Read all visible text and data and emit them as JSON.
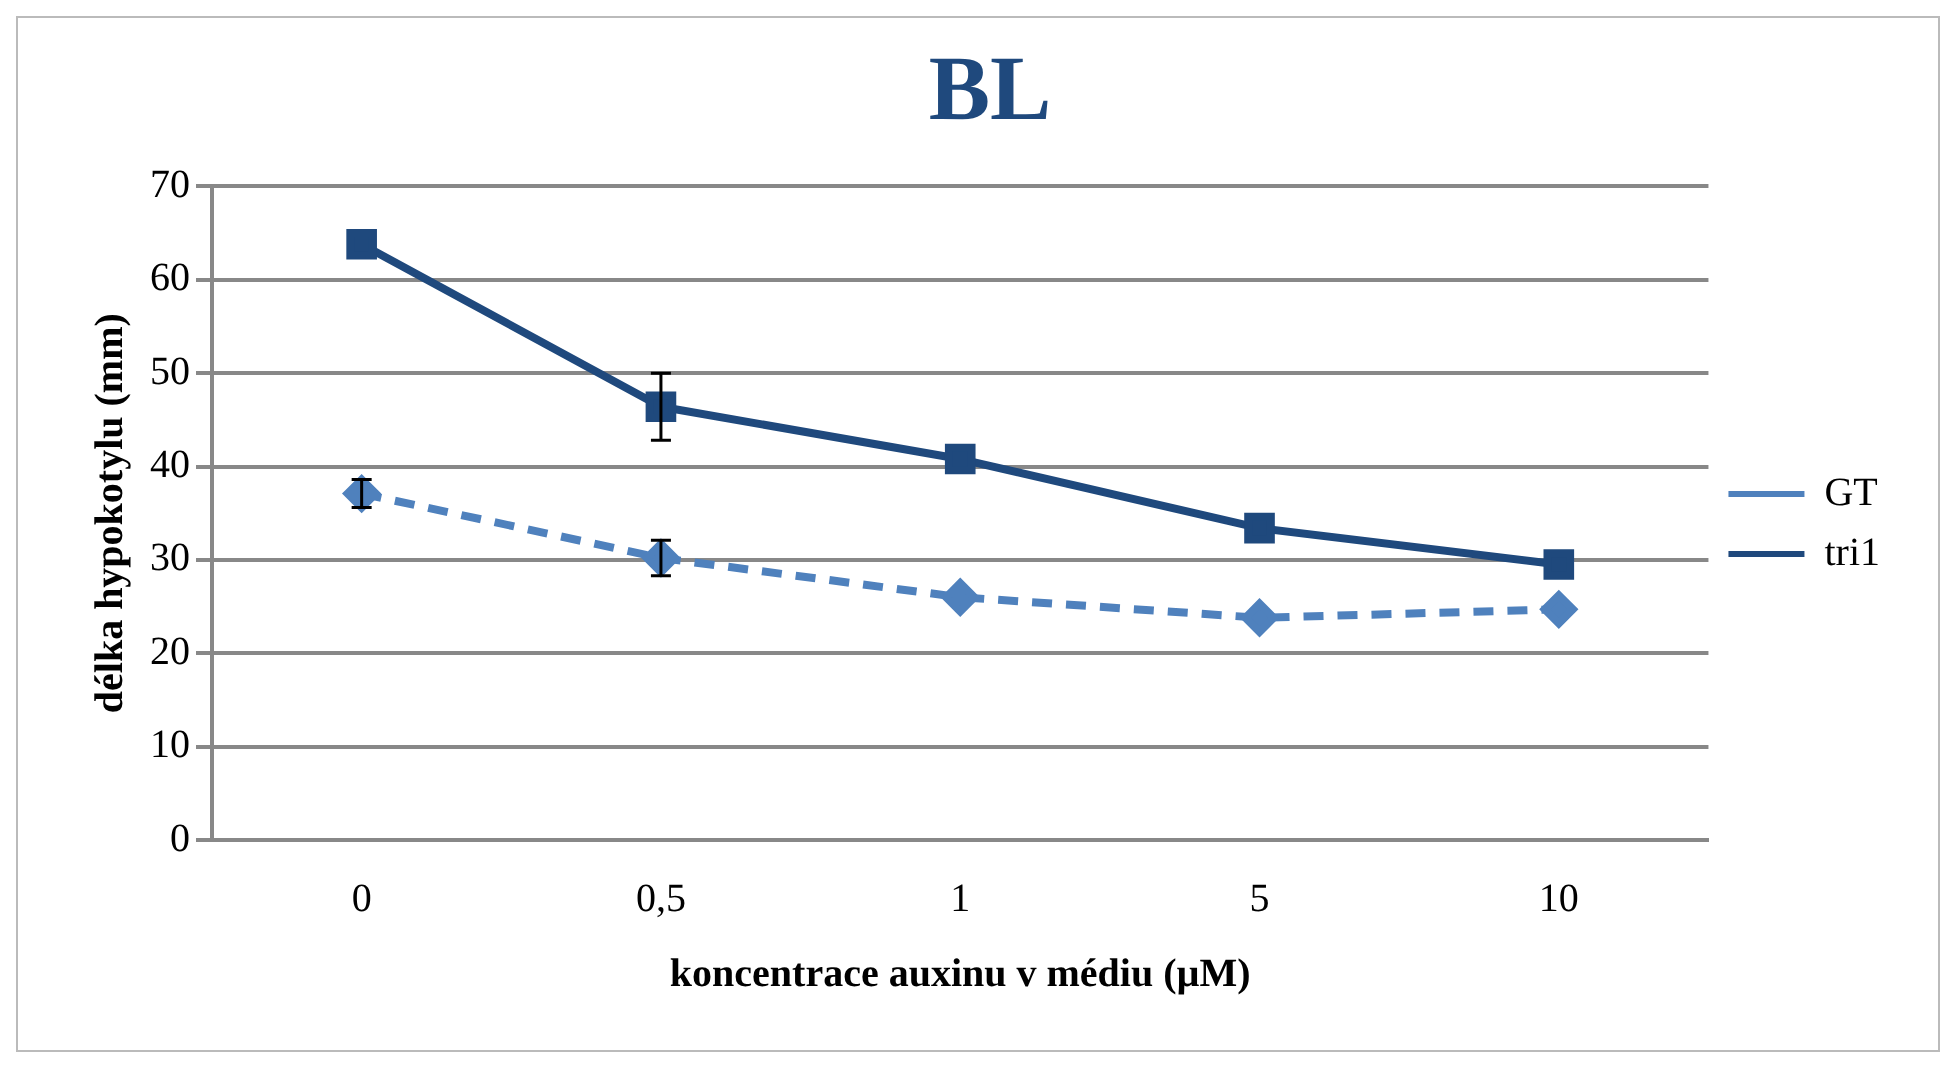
{
  "chart_data": {
    "type": "line",
    "title": "BL",
    "xlabel": "koncentrace auxinu v médiu (µM)",
    "ylabel": "délka hypokotylu (mm)",
    "categories": [
      "0",
      "0,5",
      "1",
      "5",
      "10"
    ],
    "series": [
      {
        "name": "GT",
        "color": "#4f81bd",
        "marker": "diamond",
        "line_style": "dashed",
        "values": [
          37.1,
          30.2,
          26.0,
          23.8,
          24.7
        ],
        "errors": [
          1.5,
          1.9,
          null,
          null,
          null
        ]
      },
      {
        "name": "tri1",
        "color": "#1f497d",
        "marker": "square",
        "line_style": "solid",
        "values": [
          63.8,
          46.4,
          40.8,
          33.4,
          29.5
        ],
        "errors": [
          null,
          3.6,
          null,
          null,
          null
        ]
      }
    ],
    "ylim": [
      0,
      70
    ],
    "yticks": [
      0,
      10,
      20,
      30,
      40,
      50,
      60,
      70
    ],
    "grid": "y",
    "legend": "right"
  }
}
